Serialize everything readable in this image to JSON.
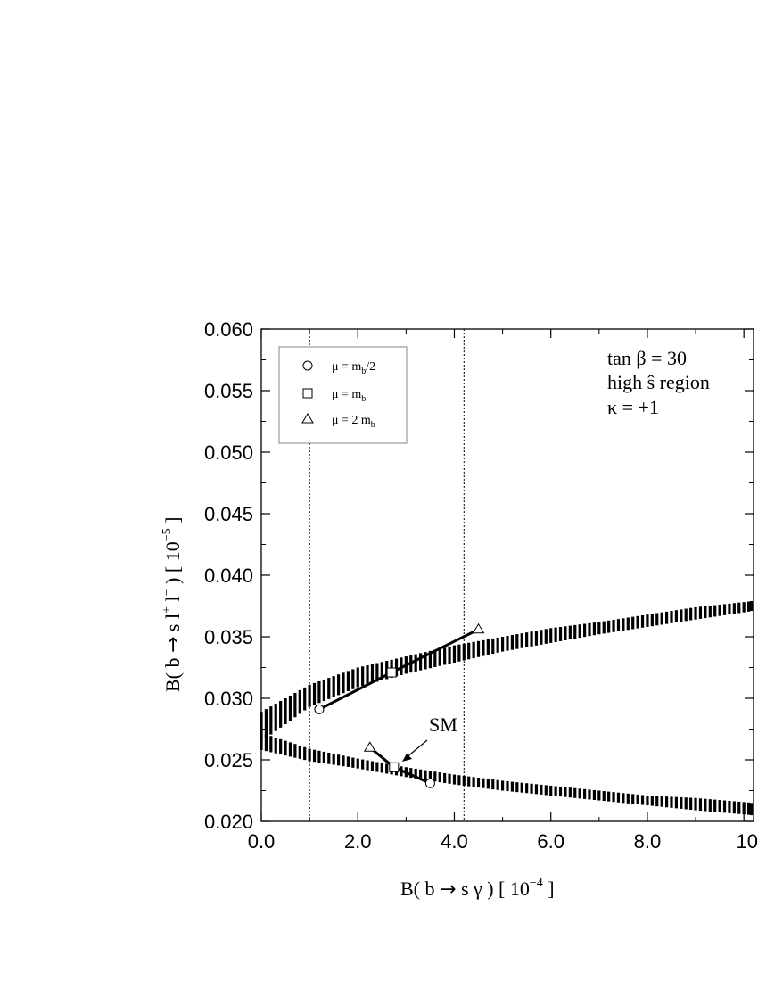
{
  "chart_data": {
    "type": "scatter",
    "xlabel": {
      "pre": "B( b ",
      "arrow": "→",
      "mid": " s ",
      "sym": "γ",
      "post": " )  [ 10",
      "exp": "−4",
      "end": " ]"
    },
    "ylabel": {
      "pre": "B( b ",
      "arrow": "→",
      "mid": " s l",
      "sup1": "+",
      "mid2": " l",
      "sup2": "−",
      "post": " )  [ 10",
      "exp": "−5",
      "end": " ]"
    },
    "xlim": [
      0,
      10.2
    ],
    "ylim": [
      0.02,
      0.06
    ],
    "xticks": [
      "0.0",
      "2.0",
      "4.0",
      "6.0",
      "8.0",
      "10"
    ],
    "yticks": [
      "0.020",
      "0.025",
      "0.030",
      "0.035",
      "0.040",
      "0.045",
      "0.050",
      "0.055",
      "0.060"
    ],
    "vlines": [
      1.0,
      4.2
    ],
    "annotation_lines": [
      "tan β = 30",
      "high ŝ region",
      "κ = +1"
    ],
    "sm_label": "SM",
    "legend": [
      {
        "marker": "circle",
        "label": "μ = m",
        "sub": "b",
        "tail": "/2"
      },
      {
        "marker": "square",
        "label": "μ = m",
        "sub": "b",
        "tail": ""
      },
      {
        "marker": "triangle",
        "label": "μ = 2 m",
        "sub": "b",
        "tail": ""
      }
    ],
    "upper_band": {
      "x": [
        0.0,
        1.0,
        2.0,
        3.0,
        4.0,
        5.0,
        6.0,
        7.0,
        8.0,
        9.0,
        10.2
      ],
      "center": [
        0.0277,
        0.0302,
        0.0317,
        0.0327,
        0.0336,
        0.0344,
        0.0351,
        0.0357,
        0.0363,
        0.0369,
        0.0375
      ],
      "half_width": [
        0.0012,
        0.0009,
        0.0008,
        0.0007,
        0.0007,
        0.0006,
        0.0006,
        0.0005,
        0.0005,
        0.0005,
        0.0004
      ]
    },
    "lower_band": {
      "x": [
        0.0,
        1.0,
        2.0,
        3.0,
        4.0,
        5.0,
        6.0,
        7.0,
        8.0,
        9.0,
        10.2
      ],
      "center": [
        0.0265,
        0.0254,
        0.0247,
        0.024,
        0.0234,
        0.0229,
        0.0225,
        0.0221,
        0.0217,
        0.0214,
        0.021
      ],
      "half_width": [
        0.0007,
        0.0005,
        0.0004,
        0.0004,
        0.0004,
        0.0004,
        0.0004,
        0.0004,
        0.0004,
        0.0005,
        0.0005
      ]
    },
    "series": [
      {
        "marker": "circle",
        "points": [
          [
            1.2,
            0.0291
          ],
          [
            3.5,
            0.0231
          ]
        ]
      },
      {
        "marker": "square",
        "points": [
          [
            2.7,
            0.0321
          ],
          [
            2.75,
            0.0244
          ]
        ]
      },
      {
        "marker": "triangle",
        "points": [
          [
            4.5,
            0.0356
          ],
          [
            2.25,
            0.026
          ]
        ]
      }
    ],
    "connector_lines": [
      [
        [
          1.2,
          0.0291
        ],
        [
          2.7,
          0.0321
        ],
        [
          4.5,
          0.0356
        ]
      ],
      [
        [
          2.25,
          0.026
        ],
        [
          2.75,
          0.0244
        ],
        [
          3.5,
          0.0231
        ]
      ]
    ]
  }
}
